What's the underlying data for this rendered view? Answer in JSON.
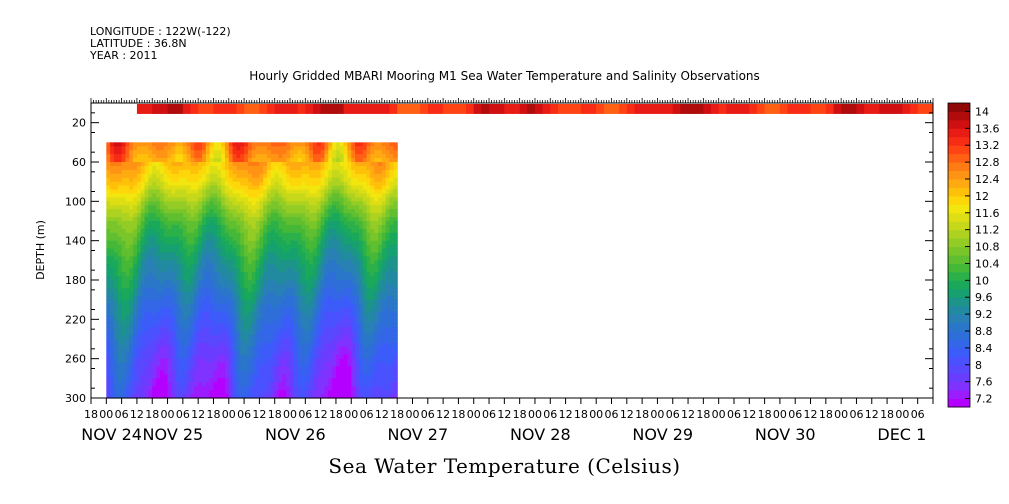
{
  "header": {
    "longitude": "LONGITUDE : 122W(-122)",
    "latitude": "LATITUDE : 36.8N",
    "year": "YEAR : 2011"
  },
  "title": "Hourly Gridded MBARI Mooring M1 Sea Water Temperature and Salinity Observations",
  "footer": "Sea Water Temperature (Celsius)",
  "chart_data": {
    "type": "heatmap",
    "title": "Hourly Gridded MBARI Mooring M1 Sea Water Temperature and Salinity Observations",
    "xlabel": "",
    "ylabel": "DEPTH (m)",
    "ylim": [
      300,
      0
    ],
    "y_ticks": [
      20,
      60,
      100,
      140,
      180,
      220,
      260,
      300
    ],
    "x_range_hours": [
      -6,
      324
    ],
    "x_hour_labels": [
      {
        "t": -6,
        "label": "18"
      },
      {
        "t": 0,
        "label": "00"
      },
      {
        "t": 6,
        "label": "06"
      },
      {
        "t": 12,
        "label": "12"
      },
      {
        "t": 18,
        "label": "18"
      },
      {
        "t": 24,
        "label": "00"
      },
      {
        "t": 30,
        "label": "06"
      },
      {
        "t": 36,
        "label": "12"
      },
      {
        "t": 42,
        "label": "18"
      },
      {
        "t": 48,
        "label": "00"
      },
      {
        "t": 54,
        "label": "06"
      },
      {
        "t": 60,
        "label": "12"
      },
      {
        "t": 66,
        "label": "18"
      },
      {
        "t": 72,
        "label": "00"
      },
      {
        "t": 78,
        "label": "06"
      },
      {
        "t": 84,
        "label": "12"
      },
      {
        "t": 90,
        "label": "18"
      },
      {
        "t": 96,
        "label": "00"
      },
      {
        "t": 102,
        "label": "06"
      },
      {
        "t": 108,
        "label": "12"
      },
      {
        "t": 114,
        "label": "18"
      },
      {
        "t": 120,
        "label": "00"
      },
      {
        "t": 126,
        "label": "06"
      },
      {
        "t": 132,
        "label": "12"
      },
      {
        "t": 138,
        "label": "18"
      },
      {
        "t": 144,
        "label": "00"
      },
      {
        "t": 150,
        "label": "06"
      },
      {
        "t": 156,
        "label": "12"
      },
      {
        "t": 162,
        "label": "18"
      },
      {
        "t": 168,
        "label": "00"
      },
      {
        "t": 174,
        "label": "06"
      },
      {
        "t": 180,
        "label": "12"
      }
    ],
    "x_day_labels": [
      {
        "t": 0,
        "label": "NOV 24"
      },
      {
        "t": 24,
        "label": "NOV 25"
      },
      {
        "t": 72,
        "label": "NOV 26"
      },
      {
        "t": 120,
        "label": "NOV 27"
      },
      {
        "t": 168,
        "label": "NOV 28"
      },
      {
        "t": 216,
        "label": "NOV 29"
      },
      {
        "t": 264,
        "label": "NOV 30"
      },
      {
        "t": 312,
        "label": "DEC  1"
      }
    ],
    "colorbar": {
      "levels": [
        7.2,
        7.4,
        7.6,
        7.8,
        8,
        8.2,
        8.4,
        8.6,
        8.8,
        9,
        9.2,
        9.4,
        9.6,
        9.8,
        10,
        10.2,
        10.4,
        10.6,
        10.8,
        11,
        11.2,
        11.4,
        11.6,
        11.8,
        12,
        12.2,
        12.4,
        12.6,
        12.8,
        13,
        13.2,
        13.4,
        13.6,
        13.8,
        14,
        14.2
      ],
      "labels": [
        "14",
        "13.6",
        "13.2",
        "12.8",
        "12.4",
        "12",
        "11.6",
        "11.2",
        "10.8",
        "10.4",
        "10",
        "9.6",
        "9.2",
        "8.8",
        "8.4",
        "8",
        "7.6",
        "7.2"
      ],
      "colors": [
        "#b400ff",
        "#9a1cff",
        "#8032ff",
        "#6a3cff",
        "#5a48ff",
        "#4a52ff",
        "#3c5cfa",
        "#3466e8",
        "#2e6ed8",
        "#2a76c8",
        "#2880b4",
        "#228aa0",
        "#1c948a",
        "#17a070",
        "#1aa85a",
        "#2cb04a",
        "#46b838",
        "#60bf30",
        "#7ac62a",
        "#94cc26",
        "#aed220",
        "#c6d81a",
        "#dede14",
        "#f2e60e",
        "#fdd70a",
        "#ffc00a",
        "#ffaa10",
        "#ff9414",
        "#ff7c14",
        "#ff6014",
        "#ff4414",
        "#f82c14",
        "#e81c14",
        "#d01010",
        "#b00c0c",
        "#8e0808"
      ]
    },
    "surface_layer": {
      "depth": [
        0,
        4
      ],
      "time_range_hours": [
        12,
        324
      ],
      "value": 13.6
    },
    "profile_data": {
      "time_range_hours": [
        0,
        114
      ],
      "depth_range": [
        40,
        300
      ],
      "depths": [
        40,
        60,
        80,
        100,
        120,
        140,
        160,
        180,
        200,
        220,
        240,
        260,
        280,
        300
      ],
      "mean_profile": [
        12.9,
        12.4,
        11.9,
        11.2,
        10.6,
        10.2,
        9.8,
        9.5,
        9.1,
        8.8,
        8.5,
        8.2,
        8.0,
        7.7
      ]
    },
    "grid": false
  }
}
